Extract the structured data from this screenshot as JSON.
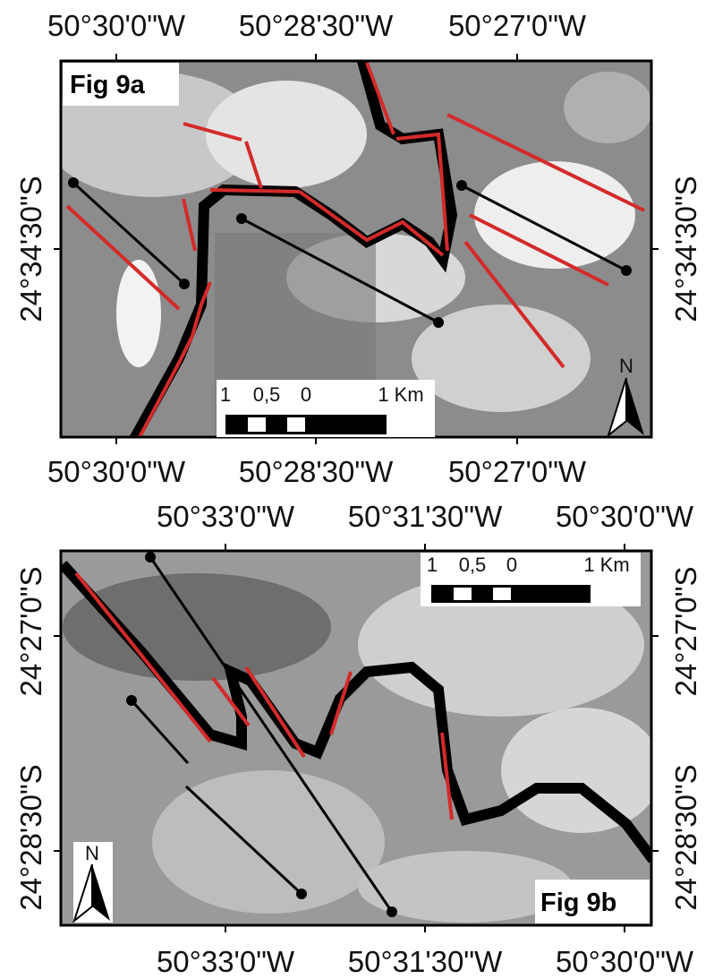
{
  "panel_a": {
    "label": "Fig 9a",
    "top_labels": [
      "50°30'0\"W",
      "50°28'30\"W",
      "50°27'0\"W"
    ],
    "bottom_labels": [
      "50°30'0\"W",
      "50°28'30\"W",
      "50°27'0\"W"
    ],
    "left_labels": [
      "24°34'30\"S"
    ],
    "right_labels": [
      "24°34'30\"S"
    ],
    "scale_labels": [
      "1",
      "0,5",
      "0",
      "1 Km"
    ],
    "north": "N"
  },
  "panel_b": {
    "label": "Fig 9b",
    "top_labels": [
      "50°33'0\"W",
      "50°31'30\"W",
      "50°30'0\"W"
    ],
    "bottom_labels": [
      "50°33'0\"W",
      "50°31'30\"W",
      "50°30'0\"W"
    ],
    "left_labels": [
      "24°27'0\"S",
      "24°28'30\"S"
    ],
    "right_labels": [
      "24°27'0\"S",
      "24°28'30\"S"
    ],
    "scale_labels": [
      "1",
      "0,5",
      "0",
      "1 Km"
    ],
    "north": "N"
  }
}
